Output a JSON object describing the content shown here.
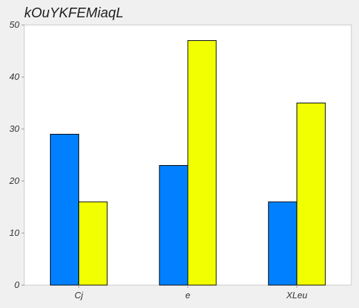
{
  "chart_data": {
    "type": "bar",
    "title": "kOuYKFEMiaqL",
    "xlabel": "",
    "ylabel": "",
    "categories": [
      "Cj",
      "e",
      "XLeu"
    ],
    "series": [
      {
        "values": [
          29,
          23,
          16
        ],
        "color": "#0080ff"
      },
      {
        "values": [
          16,
          47,
          35
        ],
        "color": "#f2ff00"
      }
    ],
    "ylim": [
      0,
      50
    ],
    "yticks": [
      0,
      10,
      20,
      30,
      40,
      50
    ],
    "grid": false,
    "legend": "none",
    "background": "#ffffff",
    "page_background": "#f0f0f0"
  }
}
